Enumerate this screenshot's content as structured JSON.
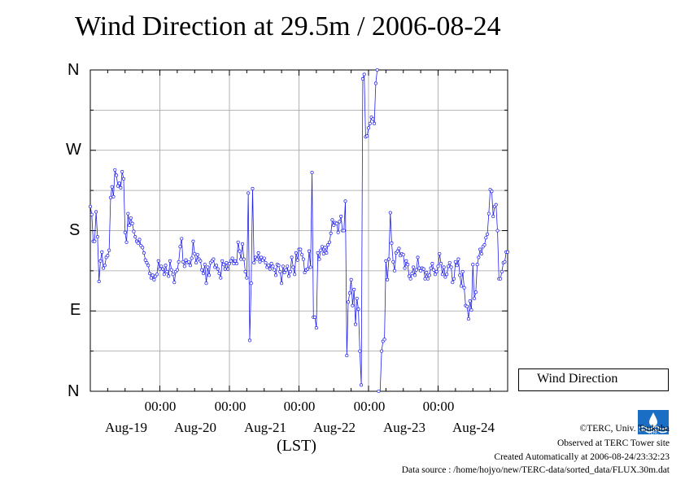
{
  "title": "Wind Direction at 29.5m / 2006-08-24",
  "legend": {
    "label": "Wind Direction"
  },
  "x_unit": "(LST)",
  "footer": {
    "copyright": "©TERC, Univ. Tsukuba",
    "observed": "Observed at TERC Tower site",
    "created": "Created Automatically at 2006-08-24/23:32:23",
    "source": "Data source : /home/hojyo/new/TERC-data/sorted_data/FLUX.30m.dat"
  },
  "colors": {
    "series": "#2020ee",
    "grid": "#a0a0a0"
  },
  "chart_data": {
    "type": "line",
    "title": "Wind Direction at 29.5m / 2006-08-24",
    "xlabel": "(LST)",
    "ylabel": "",
    "x_tick_labels": [
      "00:00",
      "00:00",
      "00:00",
      "00:00",
      "00:00"
    ],
    "x_date_labels": [
      "Aug-19",
      "Aug-20",
      "Aug-21",
      "Aug-22",
      "Aug-23",
      "Aug-24"
    ],
    "y_tick_labels": [
      "N",
      "E",
      "S",
      "W",
      "N"
    ],
    "y_tick_values": [
      0,
      90,
      180,
      270,
      360
    ],
    "ylim": [
      0,
      360
    ],
    "grid": true,
    "legend_position": "right",
    "x_range_days": [
      -1,
      5
    ],
    "series": [
      {
        "name": "Wind Direction",
        "marker": "circle",
        "points": [
          [
            -1.0,
            207
          ],
          [
            -0.979,
            198
          ],
          [
            -0.958,
            168
          ],
          [
            -0.938,
            168
          ],
          [
            -0.917,
            201
          ],
          [
            -0.896,
            173
          ],
          [
            -0.875,
            123
          ],
          [
            -0.854,
            146
          ],
          [
            -0.833,
            156
          ],
          [
            -0.813,
            138
          ],
          [
            -0.792,
            141
          ],
          [
            -0.771,
            150
          ],
          [
            -0.75,
            152
          ],
          [
            -0.729,
            158
          ],
          [
            -0.708,
            217
          ],
          [
            -0.688,
            229
          ],
          [
            -0.667,
            218
          ],
          [
            -0.646,
            248
          ],
          [
            -0.625,
            242
          ],
          [
            -0.604,
            230
          ],
          [
            -0.583,
            233
          ],
          [
            -0.563,
            228
          ],
          [
            -0.542,
            246
          ],
          [
            -0.521,
            238
          ],
          [
            -0.5,
            178
          ],
          [
            -0.479,
            167
          ],
          [
            -0.458,
            199
          ],
          [
            -0.438,
            186
          ],
          [
            -0.417,
            194
          ],
          [
            -0.396,
            188
          ],
          [
            -0.375,
            179
          ],
          [
            -0.354,
            173
          ],
          [
            -0.333,
            168
          ],
          [
            -0.313,
            166
          ],
          [
            -0.292,
            170
          ],
          [
            -0.271,
            163
          ],
          [
            -0.25,
            161
          ],
          [
            -0.229,
            155
          ],
          [
            -0.208,
            147
          ],
          [
            -0.188,
            144
          ],
          [
            -0.167,
            141
          ],
          [
            -0.146,
            132
          ],
          [
            -0.125,
            127
          ],
          [
            -0.104,
            130
          ],
          [
            -0.083,
            125
          ],
          [
            -0.063,
            129
          ],
          [
            -0.042,
            131
          ],
          [
            -0.021,
            146
          ],
          [
            0.0,
            137
          ],
          [
            0.021,
            140
          ],
          [
            0.042,
            137
          ],
          [
            0.063,
            131
          ],
          [
            0.083,
            141
          ],
          [
            0.104,
            134
          ],
          [
            0.125,
            129
          ],
          [
            0.146,
            146
          ],
          [
            0.167,
            136
          ],
          [
            0.188,
            131
          ],
          [
            0.208,
            122
          ],
          [
            0.229,
            134
          ],
          [
            0.25,
            136
          ],
          [
            0.271,
            145
          ],
          [
            0.292,
            162
          ],
          [
            0.313,
            171
          ],
          [
            0.333,
            145
          ],
          [
            0.354,
            140
          ],
          [
            0.375,
            147
          ],
          [
            0.396,
            144
          ],
          [
            0.417,
            145
          ],
          [
            0.438,
            141
          ],
          [
            0.458,
            149
          ],
          [
            0.479,
            168
          ],
          [
            0.5,
            154
          ],
          [
            0.521,
            144
          ],
          [
            0.542,
            153
          ],
          [
            0.563,
            148
          ],
          [
            0.583,
            146
          ],
          [
            0.604,
            136
          ],
          [
            0.625,
            132
          ],
          [
            0.646,
            142
          ],
          [
            0.667,
            121
          ],
          [
            0.688,
            139
          ],
          [
            0.708,
            130
          ],
          [
            0.729,
            144
          ],
          [
            0.75,
            146
          ],
          [
            0.771,
            148
          ],
          [
            0.792,
            139
          ],
          [
            0.813,
            141
          ],
          [
            0.833,
            137
          ],
          [
            0.854,
            132
          ],
          [
            0.875,
            127
          ],
          [
            0.896,
            146
          ],
          [
            0.917,
            142
          ],
          [
            0.938,
            137
          ],
          [
            0.958,
            144
          ],
          [
            0.979,
            137
          ],
          [
            1.0,
            143
          ],
          [
            1.021,
            146
          ],
          [
            1.042,
            149
          ],
          [
            1.063,
            143
          ],
          [
            1.083,
            146
          ],
          [
            1.104,
            143
          ],
          [
            1.125,
            167
          ],
          [
            1.146,
            157
          ],
          [
            1.167,
            148
          ],
          [
            1.188,
            165
          ],
          [
            1.208,
            148
          ],
          [
            1.229,
            134
          ],
          [
            1.25,
            127
          ],
          [
            1.271,
            222
          ],
          [
            1.292,
            57
          ],
          [
            1.313,
            121
          ],
          [
            1.333,
            227
          ],
          [
            1.354,
            144
          ],
          [
            1.375,
            150
          ],
          [
            1.396,
            148
          ],
          [
            1.417,
            155
          ],
          [
            1.438,
            145
          ],
          [
            1.458,
            150
          ],
          [
            1.479,
            147
          ],
          [
            1.5,
            149
          ],
          [
            1.521,
            144
          ],
          [
            1.542,
            139
          ],
          [
            1.563,
            141
          ],
          [
            1.583,
            137
          ],
          [
            1.604,
            143
          ],
          [
            1.625,
            140
          ],
          [
            1.646,
            136
          ],
          [
            1.667,
            130
          ],
          [
            1.688,
            142
          ],
          [
            1.708,
            141
          ],
          [
            1.729,
            134
          ],
          [
            1.75,
            121
          ],
          [
            1.771,
            140
          ],
          [
            1.792,
            133
          ],
          [
            1.813,
            136
          ],
          [
            1.833,
            140
          ],
          [
            1.854,
            129
          ],
          [
            1.875,
            134
          ],
          [
            1.896,
            150
          ],
          [
            1.917,
            139
          ],
          [
            1.938,
            131
          ],
          [
            1.958,
            155
          ],
          [
            1.979,
            147
          ],
          [
            2.0,
            159
          ],
          [
            2.021,
            159
          ],
          [
            2.042,
            153
          ],
          [
            2.063,
            148
          ],
          [
            2.083,
            133
          ],
          [
            2.104,
            136
          ],
          [
            2.125,
            137
          ],
          [
            2.146,
            157
          ],
          [
            2.167,
            139
          ],
          [
            2.188,
            245
          ],
          [
            2.208,
            83
          ],
          [
            2.229,
            83
          ],
          [
            2.25,
            71
          ],
          [
            2.271,
            155
          ],
          [
            2.292,
            148
          ],
          [
            2.313,
            158
          ],
          [
            2.333,
            162
          ],
          [
            2.354,
            154
          ],
          [
            2.375,
            161
          ],
          [
            2.396,
            155
          ],
          [
            2.417,
            164
          ],
          [
            2.438,
            167
          ],
          [
            2.458,
            177
          ],
          [
            2.479,
            192
          ],
          [
            2.5,
            186
          ],
          [
            2.521,
            189
          ],
          [
            2.542,
            188
          ],
          [
            2.563,
            178
          ],
          [
            2.583,
            190
          ],
          [
            2.604,
            196
          ],
          [
            2.625,
            180
          ],
          [
            2.646,
            180
          ],
          [
            2.667,
            213
          ],
          [
            2.688,
            40
          ],
          [
            2.708,
            100
          ],
          [
            2.729,
            110
          ],
          [
            2.75,
            125
          ],
          [
            2.771,
            96
          ],
          [
            2.792,
            114
          ],
          [
            2.813,
            75
          ],
          [
            2.833,
            104
          ],
          [
            2.854,
            92
          ],
          [
            2.875,
            45
          ],
          [
            2.896,
            7
          ],
          [
            2.917,
            350
          ],
          [
            2.938,
            355
          ],
          [
            2.958,
            285
          ],
          [
            2.979,
            286
          ],
          [
            3.0,
            295
          ],
          [
            3.021,
            300
          ],
          [
            3.042,
            307
          ],
          [
            3.063,
            305
          ],
          [
            3.083,
            300
          ],
          [
            3.104,
            345
          ],
          [
            3.125,
            360
          ]
        ],
        "points_2": [
          [
            3.146,
            0
          ],
          [
            3.167,
            -5
          ],
          [
            3.188,
            45
          ],
          [
            3.208,
            56
          ],
          [
            3.229,
            58
          ],
          [
            3.25,
            146
          ],
          [
            3.271,
            125
          ],
          [
            3.292,
            148
          ],
          [
            3.313,
            200
          ],
          [
            3.333,
            166
          ],
          [
            3.354,
            145
          ],
          [
            3.375,
            135
          ],
          [
            3.396,
            155
          ],
          [
            3.417,
            157
          ],
          [
            3.438,
            160
          ],
          [
            3.458,
            152
          ],
          [
            3.479,
            154
          ],
          [
            3.5,
            153
          ],
          [
            3.521,
            138
          ],
          [
            3.542,
            146
          ],
          [
            3.563,
            142
          ],
          [
            3.583,
            129
          ],
          [
            3.604,
            126
          ],
          [
            3.625,
            132
          ],
          [
            3.646,
            139
          ],
          [
            3.667,
            130
          ],
          [
            3.688,
            136
          ],
          [
            3.708,
            150
          ],
          [
            3.729,
            138
          ],
          [
            3.75,
            135
          ],
          [
            3.771,
            138
          ],
          [
            3.792,
            137
          ],
          [
            3.813,
            126
          ],
          [
            3.833,
            133
          ],
          [
            3.854,
            126
          ],
          [
            3.875,
            130
          ],
          [
            3.896,
            138
          ],
          [
            3.917,
            143
          ],
          [
            3.938,
            136
          ],
          [
            3.958,
            131
          ],
          [
            3.979,
            134
          ],
          [
            4.0,
            140
          ],
          [
            4.021,
            154
          ],
          [
            4.042,
            143
          ],
          [
            4.063,
            131
          ],
          [
            4.083,
            139
          ],
          [
            4.104,
            128
          ],
          [
            4.125,
            131
          ],
          [
            4.146,
            140
          ],
          [
            4.167,
            144
          ],
          [
            4.188,
            139
          ],
          [
            4.208,
            122
          ],
          [
            4.229,
            126
          ],
          [
            4.25,
            145
          ],
          [
            4.271,
            141
          ],
          [
            4.292,
            148
          ],
          [
            4.313,
            130
          ],
          [
            4.333,
            118
          ],
          [
            4.354,
            134
          ],
          [
            4.375,
            116
          ],
          [
            4.396,
            96
          ],
          [
            4.417,
            95
          ],
          [
            4.438,
            81
          ],
          [
            4.458,
            101
          ],
          [
            4.479,
            91
          ],
          [
            4.5,
            142
          ],
          [
            4.521,
            104
          ],
          [
            4.542,
            111
          ],
          [
            4.563,
            142
          ],
          [
            4.583,
            150
          ],
          [
            4.604,
            159
          ],
          [
            4.625,
            154
          ],
          [
            4.646,
            162
          ],
          [
            4.667,
            164
          ],
          [
            4.688,
            172
          ],
          [
            4.708,
            176
          ],
          [
            4.729,
            199
          ],
          [
            4.75,
            226
          ],
          [
            4.771,
            224
          ],
          [
            4.792,
            196
          ],
          [
            4.813,
            207
          ],
          [
            4.833,
            209
          ],
          [
            4.854,
            180
          ],
          [
            4.875,
            126
          ],
          [
            4.896,
            126
          ],
          [
            4.917,
            134
          ],
          [
            4.938,
            144
          ],
          [
            4.958,
            145
          ],
          [
            4.979,
            156
          ],
          [
            5.0,
            156
          ]
        ]
      }
    ]
  }
}
